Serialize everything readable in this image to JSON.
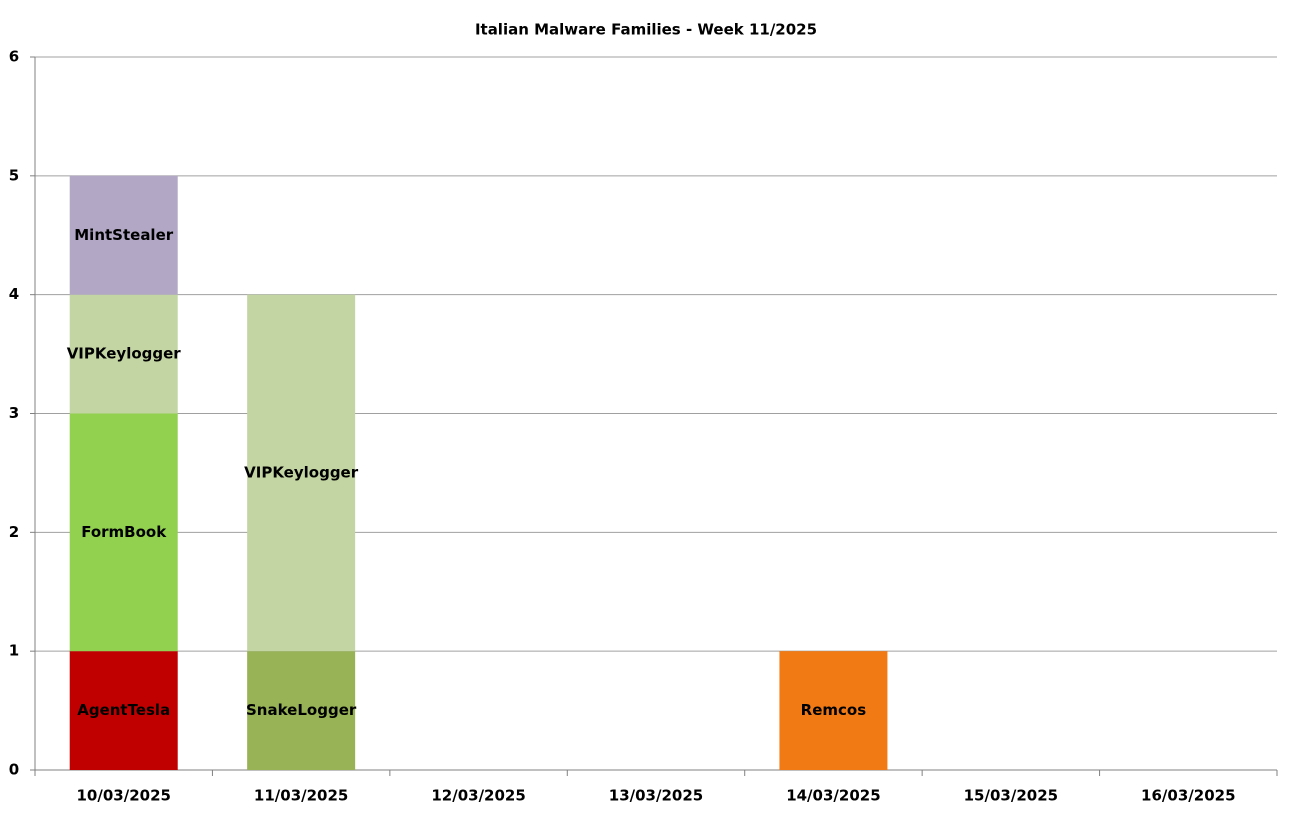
{
  "chart_data": {
    "type": "stacked-bar",
    "title": "Italian Malware Families - Week 11/2025",
    "categories": [
      "10/03/2025",
      "11/03/2025",
      "12/03/2025",
      "13/03/2025",
      "14/03/2025",
      "15/03/2025",
      "16/03/2025"
    ],
    "series": [
      {
        "name": "AgentTesla",
        "color": "#c00000",
        "values": [
          1,
          0,
          0,
          0,
          0,
          0,
          0
        ]
      },
      {
        "name": "SnakeLogger",
        "color": "#97b356",
        "values": [
          0,
          1,
          0,
          0,
          0,
          0,
          0
        ]
      },
      {
        "name": "Remcos",
        "color": "#f27a14",
        "values": [
          0,
          0,
          0,
          0,
          1,
          0,
          0
        ]
      },
      {
        "name": "FormBook",
        "color": "#92d050",
        "values": [
          2,
          0,
          0,
          0,
          0,
          0,
          0
        ]
      },
      {
        "name": "VIPKeylogger",
        "color": "#c3d5a3",
        "values": [
          1,
          3,
          0,
          0,
          0,
          0,
          0
        ]
      },
      {
        "name": "MintStealer",
        "color": "#b2a8c5",
        "values": [
          1,
          0,
          0,
          0,
          0,
          0,
          0
        ]
      }
    ],
    "ylim": [
      0,
      6
    ],
    "yticks": [
      0,
      1,
      2,
      3,
      4,
      5,
      6
    ],
    "grid": true
  }
}
